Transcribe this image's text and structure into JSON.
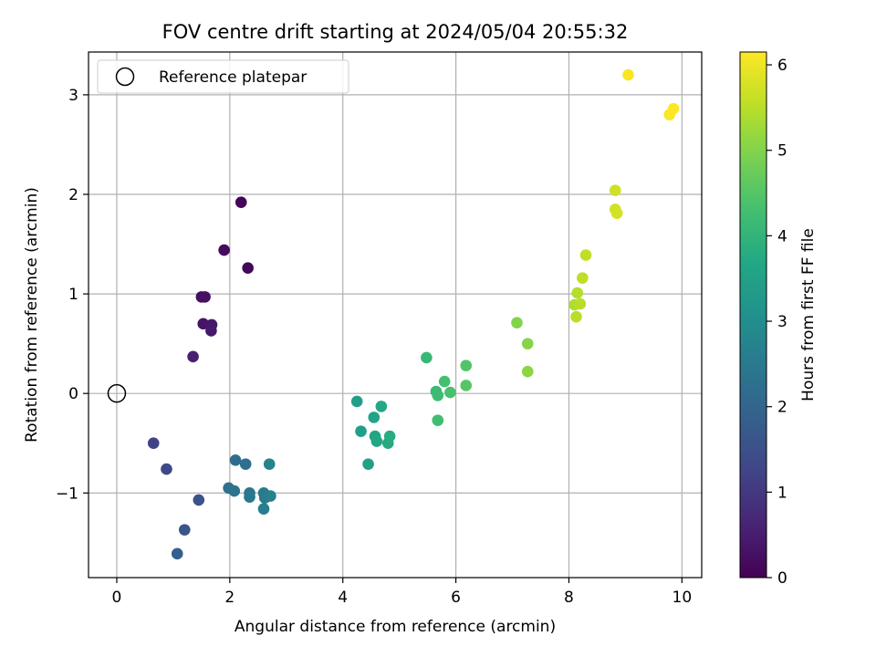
{
  "chart_data": {
    "type": "scatter",
    "title": "FOV centre drift starting at 2024/05/04 20:55:32",
    "xlabel": "Angular distance from reference (arcmin)",
    "ylabel": "Rotation from reference (arcmin)",
    "xlim": [
      -0.5,
      10.35
    ],
    "ylim": [
      -1.85,
      3.43
    ],
    "x_ticks": [
      0,
      2,
      4,
      6,
      8,
      10
    ],
    "y_ticks": [
      -1,
      0,
      1,
      2,
      3
    ],
    "x_tick_labels": [
      "0",
      "2",
      "4",
      "6",
      "8",
      "10"
    ],
    "y_tick_labels": [
      "−1",
      "0",
      "1",
      "2",
      "3"
    ],
    "grid": true,
    "legend": {
      "placement": "upper-left",
      "entries": [
        "Reference platepar"
      ]
    },
    "reference_point": {
      "x": 0,
      "y": 0,
      "label": "Reference platepar"
    },
    "colorbar": {
      "label": "Hours from first FF file",
      "colormap": "viridis",
      "range": [
        0,
        6.15
      ],
      "ticks": [
        0,
        1,
        2,
        3,
        4,
        5,
        6
      ],
      "tick_labels": [
        "0",
        "1",
        "2",
        "3",
        "4",
        "5",
        "6"
      ]
    },
    "series": [
      {
        "points": [
          {
            "x": 2.2,
            "y": 1.92,
            "c": 0.05
          },
          {
            "x": 2.32,
            "y": 1.26,
            "c": 0.1
          },
          {
            "x": 1.9,
            "y": 1.44,
            "c": 0.15
          },
          {
            "x": 1.5,
            "y": 0.97,
            "c": 0.25
          },
          {
            "x": 1.56,
            "y": 0.97,
            "c": 0.28
          },
          {
            "x": 1.53,
            "y": 0.7,
            "c": 0.33
          },
          {
            "x": 1.68,
            "y": 0.69,
            "c": 0.38
          },
          {
            "x": 1.67,
            "y": 0.63,
            "c": 0.42
          },
          {
            "x": 1.35,
            "y": 0.37,
            "c": 0.55
          },
          {
            "x": 0.65,
            "y": -0.5,
            "c": 1.2
          },
          {
            "x": 0.88,
            "y": -0.76,
            "c": 1.35
          },
          {
            "x": 1.45,
            "y": -1.07,
            "c": 1.55
          },
          {
            "x": 1.2,
            "y": -1.37,
            "c": 1.65
          },
          {
            "x": 1.07,
            "y": -1.61,
            "c": 1.85
          },
          {
            "x": 2.1,
            "y": -0.67,
            "c": 2.2
          },
          {
            "x": 2.28,
            "y": -0.71,
            "c": 2.25
          },
          {
            "x": 1.98,
            "y": -0.95,
            "c": 2.3
          },
          {
            "x": 2.08,
            "y": -0.98,
            "c": 2.35
          },
          {
            "x": 2.35,
            "y": -1.0,
            "c": 2.4
          },
          {
            "x": 2.35,
            "y": -1.04,
            "c": 2.45
          },
          {
            "x": 2.6,
            "y": -1.0,
            "c": 2.5
          },
          {
            "x": 2.62,
            "y": -1.05,
            "c": 2.55
          },
          {
            "x": 2.6,
            "y": -1.16,
            "c": 2.6
          },
          {
            "x": 2.72,
            "y": -1.03,
            "c": 2.65
          },
          {
            "x": 2.7,
            "y": -0.71,
            "c": 2.72
          },
          {
            "x": 4.25,
            "y": -0.08,
            "c": 3.4
          },
          {
            "x": 4.32,
            "y": -0.38,
            "c": 3.45
          },
          {
            "x": 4.45,
            "y": -0.71,
            "c": 3.5
          },
          {
            "x": 4.55,
            "y": -0.24,
            "c": 3.55
          },
          {
            "x": 4.57,
            "y": -0.43,
            "c": 3.6
          },
          {
            "x": 4.6,
            "y": -0.48,
            "c": 3.65
          },
          {
            "x": 4.68,
            "y": -0.13,
            "c": 3.7
          },
          {
            "x": 4.8,
            "y": -0.5,
            "c": 3.75
          },
          {
            "x": 4.83,
            "y": -0.43,
            "c": 3.8
          },
          {
            "x": 5.48,
            "y": 0.36,
            "c": 4.1
          },
          {
            "x": 5.65,
            "y": 0.02,
            "c": 4.15
          },
          {
            "x": 5.68,
            "y": -0.02,
            "c": 4.2
          },
          {
            "x": 5.68,
            "y": -0.27,
            "c": 4.25
          },
          {
            "x": 5.8,
            "y": 0.12,
            "c": 4.3
          },
          {
            "x": 5.9,
            "y": 0.01,
            "c": 4.35
          },
          {
            "x": 6.18,
            "y": 0.28,
            "c": 4.45
          },
          {
            "x": 6.18,
            "y": 0.08,
            "c": 4.5
          },
          {
            "x": 7.08,
            "y": 0.71,
            "c": 5.0
          },
          {
            "x": 7.27,
            "y": 0.5,
            "c": 5.05
          },
          {
            "x": 7.27,
            "y": 0.22,
            "c": 5.1
          },
          {
            "x": 8.1,
            "y": 0.89,
            "c": 5.4
          },
          {
            "x": 8.15,
            "y": 1.01,
            "c": 5.45
          },
          {
            "x": 8.2,
            "y": 0.9,
            "c": 5.5
          },
          {
            "x": 8.13,
            "y": 0.77,
            "c": 5.5
          },
          {
            "x": 8.24,
            "y": 1.16,
            "c": 5.55
          },
          {
            "x": 8.3,
            "y": 1.39,
            "c": 5.55
          },
          {
            "x": 8.82,
            "y": 2.04,
            "c": 5.7
          },
          {
            "x": 8.82,
            "y": 1.85,
            "c": 5.72
          },
          {
            "x": 8.85,
            "y": 1.81,
            "c": 5.74
          },
          {
            "x": 9.05,
            "y": 3.2,
            "c": 6.1
          },
          {
            "x": 9.78,
            "y": 2.8,
            "c": 6.12
          },
          {
            "x": 9.85,
            "y": 2.86,
            "c": 6.14
          }
        ]
      }
    ]
  }
}
